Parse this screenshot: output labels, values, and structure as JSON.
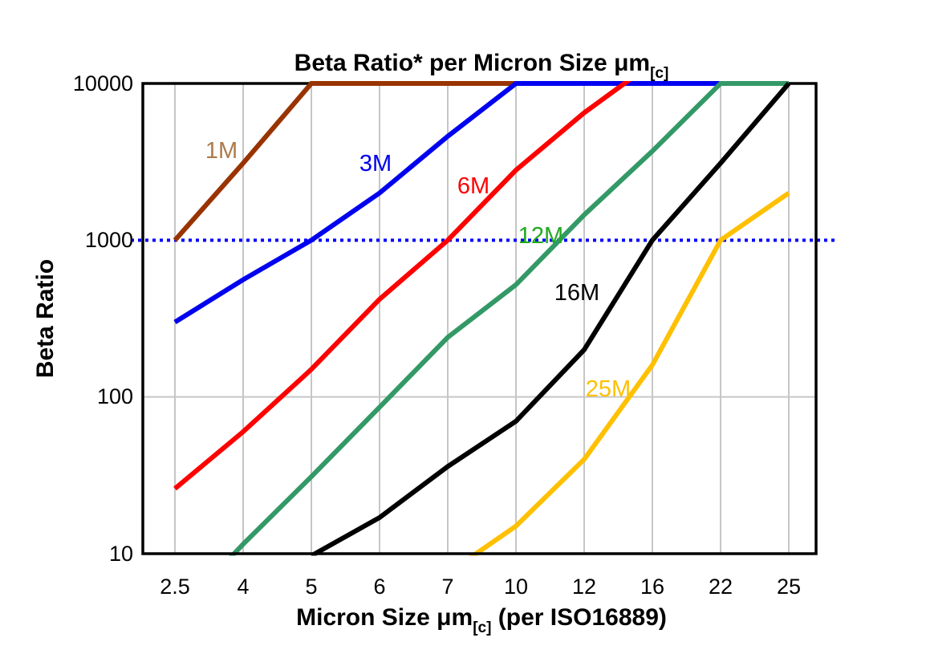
{
  "chart_data": {
    "type": "line",
    "title_main": "Beta Ratio* per Micron Size μm",
    "title_sub": "[c]",
    "ylabel": "Beta Ratio",
    "xlabel_main": "Micron Size μm",
    "xlabel_sub": "[c]",
    "xlabel_tail": " (per ISO16889)",
    "x_scale": "categorical",
    "y_scale": "log",
    "ylim": [
      10,
      10000
    ],
    "y_ticks": [
      "10000",
      "1000",
      "100",
      "10"
    ],
    "categories": [
      "2.5",
      "4",
      "5",
      "6",
      "7",
      "10",
      "12",
      "16",
      "22",
      "25"
    ],
    "gridline_color": "#c6c6c6",
    "reference_line": {
      "value": 1000,
      "style": "dotted",
      "color": "#0000ff"
    },
    "series": [
      {
        "name": "1M",
        "color": "#993300",
        "label_color": "#ab7b4a",
        "label_pos": [
          276,
          197
        ],
        "values": [
          1000,
          3100,
          10000,
          10000,
          10000,
          10000,
          10000,
          10000,
          10000,
          10000
        ]
      },
      {
        "name": "3M",
        "color": "#0000f0",
        "label_color": "#0000f0",
        "label_pos": [
          468,
          213
        ],
        "values": [
          300,
          560,
          1000,
          2000,
          4600,
          10000,
          10000,
          10000,
          10000,
          10000
        ]
      },
      {
        "name": "6M",
        "color": "#fe0000",
        "label_color": "#fe0000",
        "label_pos": [
          590,
          241
        ],
        "values": [
          26,
          60,
          150,
          420,
          1000,
          2800,
          6500,
          13500,
          null,
          null
        ]
      },
      {
        "name": "12M",
        "color": "#339966",
        "label_color": "#22aa22",
        "label_pos": [
          674,
          303
        ],
        "values": [
          4,
          11.5,
          31,
          86,
          240,
          520,
          1450,
          3700,
          10000,
          10000
        ]
      },
      {
        "name": "16M",
        "color": "#000000",
        "label_color": "#000000",
        "label_pos": [
          719,
          374
        ],
        "values": [
          null,
          null,
          9.7,
          17,
          36,
          70,
          200,
          1000,
          3100,
          10000
        ]
      },
      {
        "name": "25M",
        "color": "#ffc000",
        "label_color": "#ffc000",
        "label_pos": [
          758,
          494
        ],
        "values": [
          null,
          null,
          null,
          null,
          7.5,
          15,
          40,
          160,
          1000,
          2000
        ]
      }
    ]
  }
}
